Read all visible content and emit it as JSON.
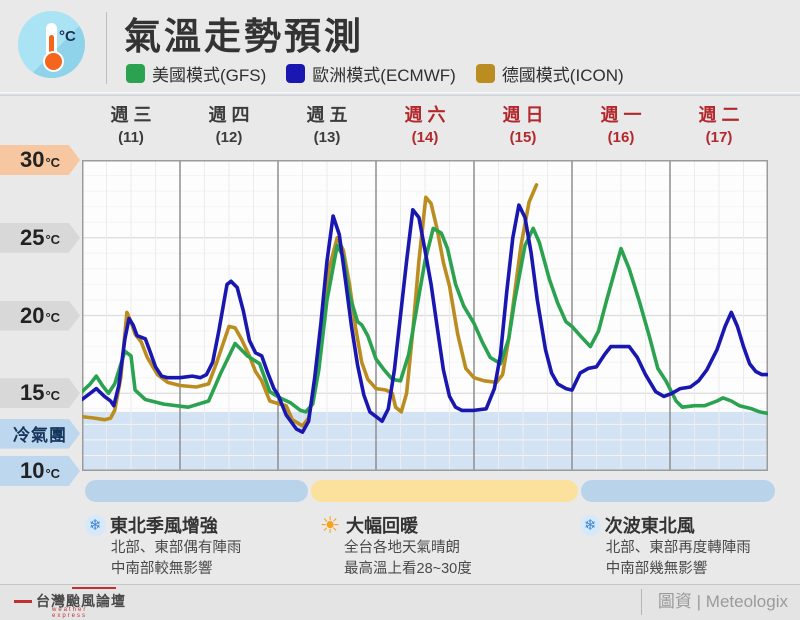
{
  "header": {
    "title": "氣溫走勢預測",
    "icon_unit": "°C",
    "legend": [
      {
        "label": "美國模式(GFS)",
        "color": "#2ba24f"
      },
      {
        "label": "歐洲模式(ECMWF)",
        "color": "#1a17b0"
      },
      {
        "label": "德國模式(ICON)",
        "color": "#bb8d20"
      }
    ]
  },
  "colors": {
    "day_normal": "#3c3c3c",
    "day_highlight": "#b3282d",
    "plot_bg": "#fdfdfd",
    "cold_band": "#d3e3f3",
    "grid_major": "#dcdcdc",
    "grid_minor": "#f4f4f4",
    "grid_day": "#8f8f8f",
    "border": "#9b9b9b"
  },
  "chart_data": {
    "type": "line",
    "title": "氣溫走勢預測",
    "ylabel": "°C",
    "ylim": [
      10,
      30
    ],
    "x_unit": "hours_from_wed_00",
    "x_range": [
      0,
      168
    ],
    "grid": true,
    "cold_band_top_temp": 13.8,
    "days": [
      {
        "name": "週三",
        "date": "(11)",
        "highlight": false
      },
      {
        "name": "週四",
        "date": "(12)",
        "highlight": false
      },
      {
        "name": "週五",
        "date": "(13)",
        "highlight": false
      },
      {
        "name": "週六",
        "date": "(14)",
        "highlight": true
      },
      {
        "name": "週日",
        "date": "(15)",
        "highlight": true
      },
      {
        "name": "週一",
        "date": "(16)",
        "highlight": true
      },
      {
        "name": "週二",
        "date": "(17)",
        "highlight": true
      }
    ],
    "y_ticks": [
      {
        "text": "30",
        "unit": "°C",
        "temp": 30,
        "style": "warm",
        "kind": "num"
      },
      {
        "text": "25",
        "unit": "°C",
        "temp": 25,
        "style": "gray",
        "kind": "num"
      },
      {
        "text": "20",
        "unit": "°C",
        "temp": 20,
        "style": "gray",
        "kind": "num"
      },
      {
        "text": "15",
        "unit": "°C",
        "temp": 15,
        "style": "gray",
        "kind": "num"
      },
      {
        "text": "冷氣團",
        "unit": "",
        "temp": 12.4,
        "style": "cold",
        "kind": "word"
      },
      {
        "text": "10",
        "unit": "°C",
        "temp": 10,
        "style": "cold",
        "kind": "num"
      }
    ],
    "series": [
      {
        "name": "德國模式(ICON)",
        "color": "#bb8d20",
        "points": [
          [
            0,
            13.5
          ],
          [
            3,
            13.4
          ],
          [
            5.5,
            13.3
          ],
          [
            7,
            13.4
          ],
          [
            8,
            13.9
          ],
          [
            9.5,
            16.0
          ],
          [
            11,
            20.2
          ],
          [
            12,
            19.6
          ],
          [
            13,
            18.8
          ],
          [
            14.5,
            18.3
          ],
          [
            16,
            17.3
          ],
          [
            18.5,
            16.2
          ],
          [
            21,
            15.7
          ],
          [
            24,
            15.5
          ],
          [
            28,
            15.4
          ],
          [
            31,
            15.6
          ],
          [
            33,
            17.0
          ],
          [
            36,
            19.3
          ],
          [
            37.5,
            19.2
          ],
          [
            39,
            18.5
          ],
          [
            41,
            17.4
          ],
          [
            42.5,
            16.4
          ],
          [
            44,
            15.8
          ],
          [
            46,
            14.5
          ],
          [
            48.5,
            14.3
          ],
          [
            50,
            14.2
          ],
          [
            51.5,
            13.3
          ],
          [
            54,
            12.9
          ],
          [
            55.5,
            13.4
          ],
          [
            57,
            15.5
          ],
          [
            58.5,
            19.0
          ],
          [
            60.5,
            23.0
          ],
          [
            62.5,
            25.0
          ],
          [
            64,
            24.2
          ],
          [
            65.5,
            22.0
          ],
          [
            67,
            19.2
          ],
          [
            68.5,
            17.0
          ],
          [
            70,
            15.9
          ],
          [
            72,
            15.3
          ],
          [
            74.5,
            15.2
          ],
          [
            76,
            15.0
          ],
          [
            76.8,
            14.1
          ],
          [
            78.2,
            13.8
          ],
          [
            79.5,
            15.0
          ],
          [
            81,
            19.0
          ],
          [
            82.5,
            23.5
          ],
          [
            84.2,
            27.6
          ],
          [
            85.5,
            27.2
          ],
          [
            87,
            25.5
          ],
          [
            88.5,
            23.4
          ],
          [
            90,
            21.9
          ],
          [
            92,
            18.8
          ],
          [
            94,
            16.6
          ],
          [
            96,
            16.0
          ],
          [
            98.5,
            15.8
          ],
          [
            101.5,
            15.7
          ],
          [
            103,
            16.2
          ],
          [
            104.5,
            18.5
          ],
          [
            106,
            21.5
          ],
          [
            107.5,
            24.5
          ],
          [
            109.5,
            27.3
          ],
          [
            111.3,
            28.4
          ]
        ]
      },
      {
        "name": "美國模式(GFS)",
        "color": "#2ba24f",
        "points": [
          [
            0,
            15.1
          ],
          [
            2,
            15.6
          ],
          [
            3.5,
            16.1
          ],
          [
            5,
            15.5
          ],
          [
            6.5,
            15.0
          ],
          [
            8,
            15.6
          ],
          [
            10.5,
            17.7
          ],
          [
            12,
            17.4
          ],
          [
            13,
            15.2
          ],
          [
            15.5,
            14.6
          ],
          [
            20,
            14.3
          ],
          [
            26,
            14.1
          ],
          [
            31,
            14.5
          ],
          [
            34,
            16.3
          ],
          [
            37.5,
            18.2
          ],
          [
            40.5,
            17.4
          ],
          [
            43.5,
            16.9
          ],
          [
            46,
            15.1
          ],
          [
            48.5,
            14.7
          ],
          [
            51,
            14.4
          ],
          [
            53.5,
            13.9
          ],
          [
            54.8,
            13.8
          ],
          [
            56.5,
            14.3
          ],
          [
            58,
            16.5
          ],
          [
            60,
            21.0
          ],
          [
            62.5,
            24.5
          ],
          [
            64,
            23.8
          ],
          [
            65.5,
            21.3
          ],
          [
            67.5,
            19.6
          ],
          [
            68.5,
            19.4
          ],
          [
            70,
            18.7
          ],
          [
            72,
            17.2
          ],
          [
            74,
            16.5
          ],
          [
            76,
            15.9
          ],
          [
            78,
            15.8
          ],
          [
            80,
            17.5
          ],
          [
            82,
            20.5
          ],
          [
            84,
            23.5
          ],
          [
            86,
            25.6
          ],
          [
            88,
            25.3
          ],
          [
            89.5,
            24.3
          ],
          [
            91.5,
            22.0
          ],
          [
            93.5,
            20.6
          ],
          [
            96,
            19.5
          ],
          [
            98,
            18.3
          ],
          [
            100,
            17.3
          ],
          [
            102.5,
            16.9
          ],
          [
            104.5,
            18.5
          ],
          [
            106,
            21.0
          ],
          [
            108.5,
            24.5
          ],
          [
            110.5,
            25.6
          ],
          [
            112,
            24.7
          ],
          [
            114.5,
            22.3
          ],
          [
            116.5,
            20.8
          ],
          [
            118.5,
            19.6
          ],
          [
            120,
            19.3
          ],
          [
            122,
            18.7
          ],
          [
            124.5,
            18.0
          ],
          [
            126.5,
            19.0
          ],
          [
            128.5,
            21.0
          ],
          [
            132,
            24.3
          ],
          [
            134,
            23.0
          ],
          [
            136.5,
            20.9
          ],
          [
            139,
            18.6
          ],
          [
            141,
            16.6
          ],
          [
            143,
            15.8
          ],
          [
            145.5,
            14.5
          ],
          [
            147,
            14.1
          ],
          [
            150,
            14.2
          ],
          [
            152.5,
            14.2
          ],
          [
            155.5,
            14.5
          ],
          [
            157,
            14.7
          ],
          [
            159,
            14.5
          ],
          [
            161,
            14.2
          ],
          [
            164,
            14.0
          ],
          [
            166,
            13.8
          ],
          [
            168,
            13.7
          ]
        ]
      },
      {
        "name": "歐洲模式(ECMWF)",
        "color": "#1a17b0",
        "points": [
          [
            0,
            14.6
          ],
          [
            2,
            15.0
          ],
          [
            3.5,
            15.3
          ],
          [
            5.5,
            14.8
          ],
          [
            7,
            14.5
          ],
          [
            7.8,
            14.2
          ],
          [
            9,
            15.5
          ],
          [
            10.5,
            18.5
          ],
          [
            11.5,
            19.8
          ],
          [
            12.5,
            19.4
          ],
          [
            13.5,
            18.7
          ],
          [
            15.5,
            18.5
          ],
          [
            16.5,
            17.8
          ],
          [
            18,
            16.7
          ],
          [
            19.5,
            16.1
          ],
          [
            21,
            16.0
          ],
          [
            24,
            16.0
          ],
          [
            27,
            16.1
          ],
          [
            29,
            16.0
          ],
          [
            30.5,
            16.2
          ],
          [
            32,
            17.0
          ],
          [
            33.5,
            19.0
          ],
          [
            35.5,
            22.0
          ],
          [
            36.5,
            22.2
          ],
          [
            38,
            21.8
          ],
          [
            39.5,
            20.3
          ],
          [
            41,
            18.4
          ],
          [
            42.5,
            17.6
          ],
          [
            44,
            17.4
          ],
          [
            45.5,
            16.3
          ],
          [
            47,
            15.3
          ],
          [
            48,
            14.9
          ],
          [
            50,
            13.6
          ],
          [
            52.5,
            12.7
          ],
          [
            54,
            12.5
          ],
          [
            55.5,
            13.2
          ],
          [
            57,
            16.0
          ],
          [
            58.5,
            19.5
          ],
          [
            60,
            23.5
          ],
          [
            61.5,
            26.4
          ],
          [
            63,
            25.2
          ],
          [
            64.5,
            22.3
          ],
          [
            66,
            19.3
          ],
          [
            67.5,
            16.8
          ],
          [
            69,
            14.9
          ],
          [
            70.5,
            13.8
          ],
          [
            72,
            13.5
          ],
          [
            73.5,
            13.2
          ],
          [
            75,
            14.0
          ],
          [
            76.5,
            16.5
          ],
          [
            78,
            20.0
          ],
          [
            79.5,
            23.5
          ],
          [
            81,
            26.8
          ],
          [
            82.5,
            26.3
          ],
          [
            84,
            24.2
          ],
          [
            85.5,
            22.0
          ],
          [
            87,
            19.2
          ],
          [
            88.5,
            16.5
          ],
          [
            90,
            14.8
          ],
          [
            91.5,
            14.1
          ],
          [
            93,
            13.9
          ],
          [
            96,
            13.9
          ],
          [
            99,
            14.0
          ],
          [
            101,
            15.3
          ],
          [
            102.5,
            17.5
          ],
          [
            104,
            21.5
          ],
          [
            105.5,
            25.0
          ],
          [
            107,
            27.1
          ],
          [
            108.5,
            26.3
          ],
          [
            110,
            24.0
          ],
          [
            111.5,
            21.0
          ],
          [
            113.5,
            17.8
          ],
          [
            115,
            16.3
          ],
          [
            116.5,
            15.6
          ],
          [
            118.5,
            15.3
          ],
          [
            120,
            15.2
          ],
          [
            122,
            16.3
          ],
          [
            124,
            16.6
          ],
          [
            126,
            16.7
          ],
          [
            128,
            17.5
          ],
          [
            129.5,
            18.0
          ],
          [
            134,
            18.0
          ],
          [
            136,
            17.3
          ],
          [
            138,
            16.2
          ],
          [
            140.5,
            15.1
          ],
          [
            142.5,
            14.8
          ],
          [
            144.5,
            15.0
          ],
          [
            146.5,
            15.3
          ],
          [
            149,
            15.4
          ],
          [
            151,
            15.8
          ],
          [
            153,
            16.5
          ],
          [
            155.5,
            17.8
          ],
          [
            157.5,
            19.3
          ],
          [
            159,
            20.2
          ],
          [
            160.5,
            19.3
          ],
          [
            162,
            18.0
          ],
          [
            163.5,
            16.9
          ],
          [
            165,
            16.4
          ],
          [
            166.5,
            16.2
          ],
          [
            168,
            16.2
          ]
        ]
      }
    ]
  },
  "timeline": {
    "segments": [
      {
        "type": "cold",
        "start_h": 0.7,
        "end_h": 55.3
      },
      {
        "type": "warm",
        "start_h": 56.1,
        "end_h": 121.4
      },
      {
        "type": "cold",
        "start_h": 122.2,
        "end_h": 169.6
      }
    ]
  },
  "annotations": [
    {
      "icon": "snowflake",
      "title": "東北季風增強",
      "lines": [
        "北部、東部偶有陣雨",
        "中南部較無影響"
      ],
      "at_h": 0.7
    },
    {
      "icon": "sun",
      "title": "大幅回暖",
      "lines": [
        "全台各地天氣晴朗",
        "最高溫上看28~30度"
      ],
      "at_h": 57.8
    },
    {
      "icon": "snowflake",
      "title": "次波東北風",
      "lines": [
        "北部、東部再度轉陣雨",
        "中南部幾無影響"
      ],
      "at_h": 121.9
    }
  ],
  "footer": {
    "logo_main": "台灣颱風論壇",
    "logo_sub": "weather express",
    "credit": "圖資 | Meteologix"
  }
}
